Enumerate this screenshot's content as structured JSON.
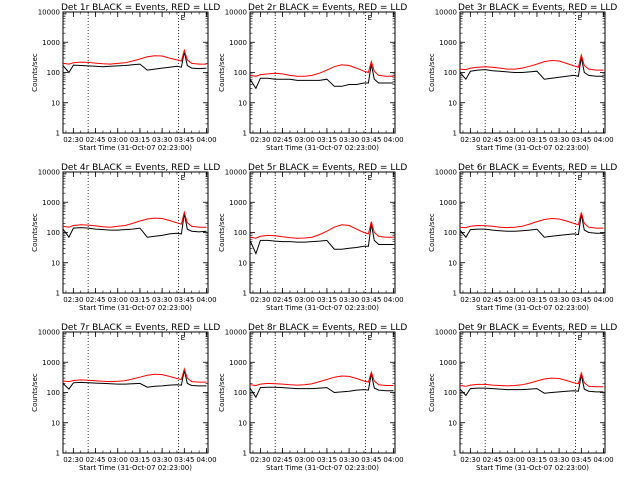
{
  "chart_data": {
    "type": "line",
    "x_tick_labels": [
      "02:30",
      "02:45",
      "03:00",
      "03:15",
      "03:30",
      "03:45",
      "04:00"
    ],
    "y_tick_labels": [
      "1",
      "10",
      "100",
      "1000",
      "10000"
    ],
    "y_scale": "log",
    "ylim": [
      1,
      10000
    ],
    "xlim": [
      "02:23",
      "04:01"
    ],
    "xlabel": "Start Time (31-Oct-07 02:23:00)",
    "ylabel": "Counts/sec",
    "vertical_markers": [
      "02:40",
      "03:41"
    ],
    "marker_label": "E",
    "marker_label_time": "03:44",
    "colors": {
      "events": "#000000",
      "lld": "#ff0000"
    },
    "x_times": [
      "02:23",
      "02:27",
      "02:30",
      "02:35",
      "02:40",
      "02:45",
      "02:50",
      "02:55",
      "03:00",
      "03:05",
      "03:10",
      "03:15",
      "03:20",
      "03:25",
      "03:30",
      "03:35",
      "03:40",
      "03:43",
      "03:45",
      "03:47",
      "03:50",
      "03:55",
      "04:00"
    ],
    "panels": [
      {
        "title": "Det 1r BLACK = Events, RED = LLD",
        "series": [
          {
            "values": [
              170,
              100,
              175,
              170,
              165,
              160,
              155,
              160,
              165,
              170,
              180,
              190,
              120,
              130,
              140,
              150,
              160,
              150,
              480,
              170,
              140,
              135,
              140
            ]
          },
          {
            "values": [
              200,
              190,
              210,
              220,
              215,
              205,
              195,
              190,
              200,
              210,
              240,
              280,
              330,
              360,
              350,
              300,
              260,
              240,
              540,
              260,
              200,
              190,
              190
            ]
          }
        ]
      },
      {
        "title": "Det 2r BLACK = Events, RED = LLD",
        "series": [
          {
            "values": [
              60,
              30,
              65,
              65,
              60,
              60,
              60,
              55,
              55,
              55,
              55,
              60,
              35,
              35,
              40,
              40,
              45,
              45,
              190,
              60,
              45,
              45,
              45
            ]
          },
          {
            "values": [
              80,
              75,
              85,
              90,
              95,
              90,
              80,
              75,
              75,
              80,
              95,
              120,
              155,
              180,
              170,
              140,
              110,
              100,
              230,
              110,
              80,
              75,
              75
            ]
          }
        ]
      },
      {
        "title": "Det 3r BLACK = Events, RED = LLD",
        "series": [
          {
            "values": [
              100,
              60,
              110,
              120,
              125,
              115,
              110,
              105,
              100,
              100,
              105,
              110,
              60,
              65,
              70,
              75,
              80,
              75,
              320,
              100,
              80,
              75,
              75
            ]
          },
          {
            "values": [
              130,
              125,
              140,
              150,
              155,
              150,
              140,
              130,
              130,
              140,
              160,
              190,
              230,
              250,
              240,
              200,
              165,
              150,
              380,
              170,
              130,
              120,
              120
            ]
          }
        ]
      },
      {
        "title": "Det 4r BLACK = Events, RED = LLD",
        "series": [
          {
            "values": [
              130,
              70,
              140,
              145,
              140,
              130,
              125,
              120,
              120,
              125,
              130,
              140,
              70,
              75,
              80,
              90,
              95,
              90,
              420,
              130,
              110,
              105,
              110
            ]
          },
          {
            "values": [
              160,
              150,
              170,
              180,
              175,
              165,
              155,
              150,
              160,
              170,
              200,
              240,
              280,
              300,
              290,
              250,
              210,
              190,
              470,
              210,
              160,
              150,
              150
            ]
          }
        ]
      },
      {
        "title": "Det 5r BLACK = Events, RED = LLD",
        "series": [
          {
            "values": [
              55,
              20,
              55,
              55,
              52,
              50,
              50,
              48,
              48,
              50,
              52,
              55,
              28,
              28,
              30,
              32,
              35,
              35,
              190,
              55,
              40,
              40,
              40
            ]
          },
          {
            "values": [
              70,
              65,
              75,
              80,
              78,
              72,
              68,
              65,
              66,
              70,
              85,
              110,
              150,
              180,
              170,
              130,
              100,
              90,
              230,
              100,
              75,
              70,
              70
            ]
          }
        ]
      },
      {
        "title": "Det 6r BLACK = Events, RED = LLD",
        "series": [
          {
            "values": [
              120,
              70,
              125,
              130,
              130,
              120,
              115,
              110,
              110,
              115,
              120,
              130,
              70,
              75,
              80,
              85,
              90,
              85,
              400,
              120,
              100,
              95,
              95
            ]
          },
          {
            "values": [
              150,
              145,
              160,
              170,
              168,
              160,
              150,
              145,
              150,
              160,
              190,
              230,
              270,
              290,
              280,
              240,
              200,
              180,
              460,
              200,
              150,
              140,
              140
            ]
          }
        ]
      },
      {
        "title": "Det 7r BLACK = Events, RED = LLD",
        "series": [
          {
            "values": [
              200,
              130,
              210,
              215,
              210,
              205,
              200,
              195,
              190,
              190,
              195,
              200,
              150,
              160,
              165,
              175,
              180,
              175,
              540,
              200,
              170,
              165,
              165
            ]
          },
          {
            "values": [
              240,
              230,
              250,
              260,
              255,
              245,
              235,
              230,
              235,
              245,
              280,
              320,
              370,
              400,
              390,
              340,
              290,
              270,
              600,
              300,
              230,
              220,
              220
            ]
          }
        ]
      },
      {
        "title": "Det 8r BLACK = Events, RED = LLD",
        "series": [
          {
            "values": [
              140,
              70,
              145,
              150,
              150,
              145,
              140,
              135,
              135,
              135,
              140,
              145,
              100,
              105,
              110,
              120,
              125,
              120,
              420,
              140,
              120,
              115,
              115
            ]
          },
          {
            "values": [
              180,
              170,
              190,
              200,
              195,
              190,
              180,
              175,
              180,
              195,
              230,
              270,
              320,
              350,
              340,
              290,
              240,
              220,
              470,
              240,
              180,
              170,
              170
            ]
          }
        ]
      },
      {
        "title": "Det 9r BLACK = Events, RED = LLD",
        "series": [
          {
            "values": [
              130,
              80,
              135,
              140,
              140,
              135,
              130,
              125,
              125,
              125,
              130,
              135,
              95,
              100,
              105,
              110,
              115,
              110,
              380,
              130,
              110,
              105,
              105
            ]
          },
          {
            "values": [
              170,
              160,
              175,
              185,
              185,
              175,
              170,
              165,
              170,
              180,
              205,
              240,
              280,
              300,
              290,
              250,
              210,
              195,
              440,
              210,
              160,
              155,
              155
            ]
          }
        ]
      }
    ]
  }
}
